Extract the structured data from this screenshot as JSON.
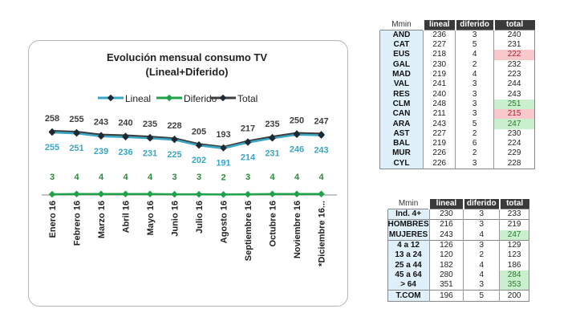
{
  "chart_data": {
    "type": "line",
    "title": "Evolución mensual consumo TV",
    "subtitle": "(Lineal+Diferido)",
    "categories": [
      "Enero 16",
      "Febrero 16",
      "Marzo 16",
      "Abril 16",
      "Mayo 16",
      "Junio 16",
      "Julio 16",
      "Agosto 16",
      "Septiembre 16",
      "Octubre 16",
      "Noviembre 16",
      "*Diciembre 16..."
    ],
    "series": [
      {
        "name": "Lineal",
        "color": "#3aa7c4",
        "values": [
          255,
          251,
          239,
          236,
          231,
          225,
          202,
          191,
          214,
          231,
          246,
          243
        ]
      },
      {
        "name": "Diferido",
        "color": "#1fa34a",
        "values": [
          3,
          4,
          4,
          4,
          4,
          3,
          3,
          2,
          3,
          4,
          4,
          4
        ]
      },
      {
        "name": "Total",
        "color": "#3d3d3d",
        "values": [
          258,
          255,
          243,
          240,
          235,
          228,
          205,
          193,
          217,
          235,
          250,
          247
        ]
      }
    ],
    "legend": "top",
    "grid": false
  },
  "table1": {
    "headers": [
      "Mmin",
      "lineal",
      "diferido",
      "total"
    ],
    "rows": [
      [
        "AND",
        "236",
        "3",
        "240",
        ""
      ],
      [
        "CAT",
        "227",
        "5",
        "231",
        ""
      ],
      [
        "EUS",
        "218",
        "4",
        "222",
        "red"
      ],
      [
        "GAL",
        "230",
        "2",
        "232",
        ""
      ],
      [
        "MAD",
        "219",
        "4",
        "223",
        ""
      ],
      [
        "VAL",
        "241",
        "3",
        "244",
        ""
      ],
      [
        "RES",
        "240",
        "3",
        "243",
        ""
      ],
      [
        "CLM",
        "248",
        "3",
        "251",
        "grn"
      ],
      [
        "CAN",
        "211",
        "3",
        "215",
        "red"
      ],
      [
        "ARA",
        "243",
        "5",
        "247",
        "grn"
      ],
      [
        "AST",
        "227",
        "2",
        "230",
        ""
      ],
      [
        "BAL",
        "219",
        "6",
        "224",
        ""
      ],
      [
        "MUR",
        "226",
        "2",
        "229",
        ""
      ],
      [
        "CYL",
        "226",
        "3",
        "228",
        ""
      ]
    ]
  },
  "table2": {
    "headers": [
      "Mmin",
      "lineal",
      "diferido",
      "total"
    ],
    "rows": [
      [
        "Ind. 4+",
        "230",
        "3",
        "233",
        ""
      ],
      [
        "HOMBRES",
        "216",
        "3",
        "219",
        ""
      ],
      [
        "MUJERES",
        "243",
        "4",
        "247",
        "grn"
      ],
      [
        "4 a 12",
        "126",
        "3",
        "129",
        ""
      ],
      [
        "13 a 24",
        "120",
        "2",
        "123",
        ""
      ],
      [
        "25 a 44",
        "182",
        "4",
        "186",
        ""
      ],
      [
        "45 a 64",
        "280",
        "4",
        "284",
        "grn"
      ],
      [
        "> 64",
        "351",
        "3",
        "353",
        "grn"
      ],
      [
        "T.COM",
        "196",
        "5",
        "200",
        ""
      ]
    ]
  }
}
